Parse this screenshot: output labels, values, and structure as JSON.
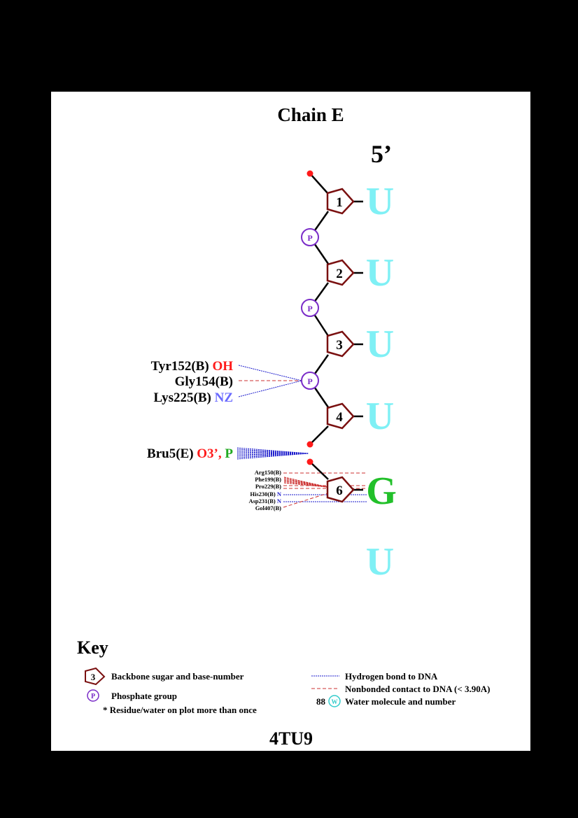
{
  "title": "Chain E",
  "end_label": "5’",
  "footer_id": "4TU9",
  "colors": {
    "sugar": "#7a1010",
    "phosphate": "#7a2cc8",
    "base_u": "#7ff0f5",
    "base_g": "#22c02a",
    "red": "#ff1a1a",
    "hbond": "#1a1acc",
    "nonbonded": "#cc3030",
    "nz_blue": "#6a6aff",
    "green_p": "#22aa22",
    "water": "#33cccc"
  },
  "nucleotides": [
    {
      "number": "1",
      "base": "U"
    },
    {
      "number": "2",
      "base": "U"
    },
    {
      "number": "3",
      "base": "U"
    },
    {
      "number": "4",
      "base": "U"
    },
    {
      "number": "6",
      "base": "G"
    }
  ],
  "extra_base": "U",
  "phosphates": [
    "P",
    "P",
    "P"
  ],
  "contacts_p3": [
    {
      "residue": "Tyr152(B)",
      "atom": "OH"
    },
    {
      "residue": "Gly154(B)",
      "atom": ""
    },
    {
      "residue": "Lys225(B)",
      "atom": "NZ"
    }
  ],
  "bru5": {
    "residue": "Bru5(E)",
    "atom1": "O3’",
    "sep": ",",
    "atom2": "P"
  },
  "contacts_s6": [
    {
      "residue": "Arg150(B)",
      "atom": ""
    },
    {
      "residue": "Phe199(B)",
      "atom": ""
    },
    {
      "residue": "Pro229(B)",
      "atom": ""
    },
    {
      "residue": "His230(B)",
      "atom": "N"
    },
    {
      "residue": "Asp231(B)",
      "atom": "N"
    },
    {
      "residue": "Gol407(B)",
      "atom": ""
    }
  ],
  "key": {
    "title": "Key",
    "sugar_number": "3",
    "sugar_label": "Backbone sugar and base-number",
    "phosphate_symbol": "P",
    "phosphate_label": "Phosphate group",
    "multi_label": "* Residue/water on plot more than once",
    "hbond_label": "Hydrogen bond to DNA",
    "nonbond_label": "Nonbonded contact to DNA (< 3.90A)",
    "water_number": "88",
    "water_symbol": "W",
    "water_label": "Water molecule and number"
  }
}
